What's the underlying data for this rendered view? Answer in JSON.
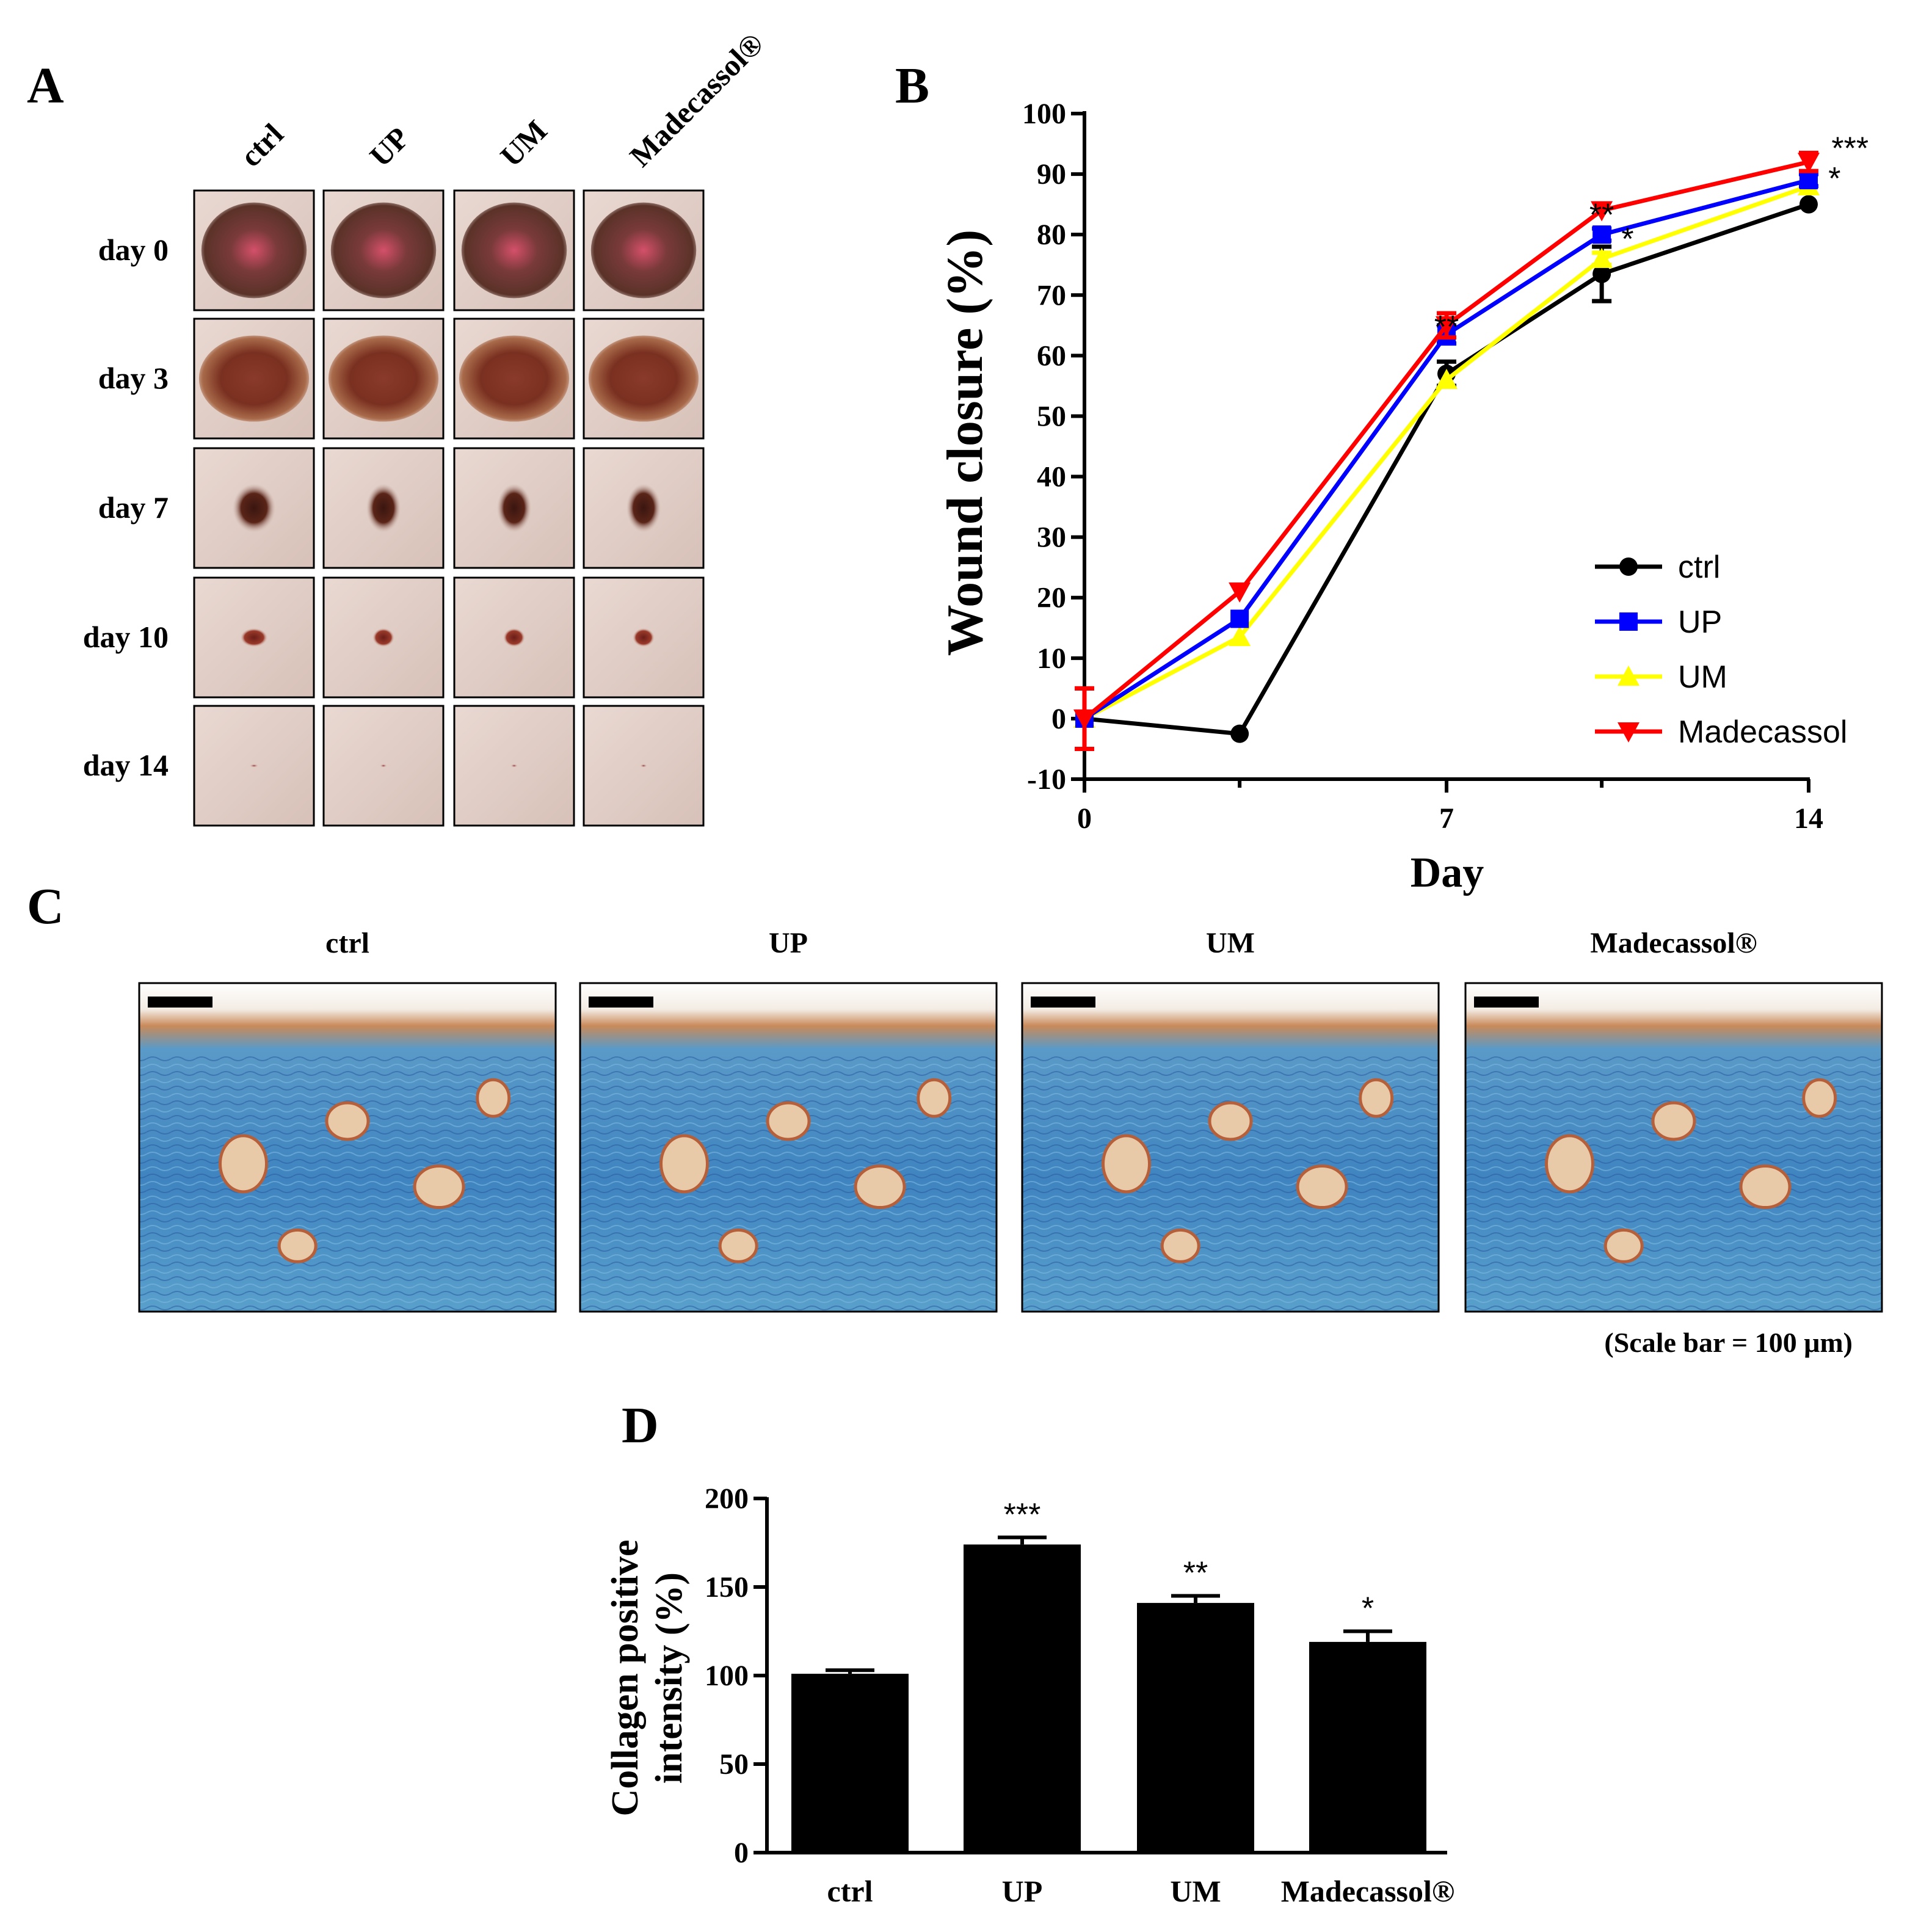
{
  "panels": {
    "A": {
      "label": "A",
      "columns": [
        "ctrl",
        "UP",
        "UM",
        "Madecassol®"
      ],
      "rows": [
        "day 0",
        "day 3",
        "day 7",
        "day 10",
        "day 14"
      ]
    },
    "B": {
      "label": "B"
    },
    "C": {
      "label": "C",
      "columns": [
        "ctrl",
        "UP",
        "UM",
        "Madecassol®"
      ],
      "scale_note": "(Scale bar = 100 μm)"
    },
    "D": {
      "label": "D"
    }
  },
  "chart_data": [
    {
      "id": "B",
      "type": "line",
      "title": "",
      "xlabel": "Day",
      "ylabel": "Wound closure (%)",
      "xlim": [
        0,
        14
      ],
      "ylim": [
        -10,
        100
      ],
      "xticks": [
        0,
        7,
        14
      ],
      "yticks": [
        -10,
        0,
        10,
        20,
        30,
        40,
        50,
        60,
        70,
        80,
        90,
        100
      ],
      "x": [
        0,
        3,
        7,
        10,
        14
      ],
      "legend_position": "bottom-right",
      "series": [
        {
          "name": "ctrl",
          "color": "#000000",
          "marker": "circle",
          "values": [
            0,
            -2.5,
            57,
            73.5,
            85
          ],
          "errors": [
            5,
            0,
            2,
            4.5,
            0
          ]
        },
        {
          "name": "UP",
          "color": "#0000ff",
          "marker": "square",
          "values": [
            0,
            16.5,
            63.5,
            80,
            89
          ],
          "errors": [
            0,
            0,
            1.5,
            1,
            1
          ]
        },
        {
          "name": "UM",
          "color": "#ffff00",
          "marker": "triangle-up",
          "values": [
            0,
            13.5,
            56,
            76,
            88
          ],
          "errors": [
            0,
            0,
            0,
            1,
            0
          ]
        },
        {
          "name": "Madecassol",
          "color": "#ff0000",
          "marker": "triangle-down",
          "values": [
            0,
            21,
            65,
            84,
            92
          ],
          "errors": [
            5,
            0,
            2,
            0,
            1.5
          ]
        }
      ],
      "annotations": [
        {
          "x": 7,
          "y": 66,
          "text": "**"
        },
        {
          "x": 10,
          "y": 84.5,
          "text": "**"
        },
        {
          "x": 10.5,
          "y": 80.5,
          "text": "*"
        },
        {
          "x": 14.8,
          "y": 95.5,
          "text": "***"
        },
        {
          "x": 14.5,
          "y": 90.5,
          "text": "*"
        }
      ]
    },
    {
      "id": "D",
      "type": "bar",
      "title": "",
      "xlabel": "",
      "ylabel_lines": [
        "Collagen positive",
        "intensity (%)"
      ],
      "ylim": [
        0,
        200
      ],
      "yticks": [
        0,
        50,
        100,
        150,
        200
      ],
      "categories": [
        "ctrl",
        "UP",
        "UM",
        "Madecassol®"
      ],
      "values": [
        101,
        174,
        141,
        119
      ],
      "errors": [
        2,
        4,
        4,
        6
      ],
      "significance": [
        "",
        "***",
        "**",
        "*"
      ],
      "color": "#000000"
    }
  ]
}
